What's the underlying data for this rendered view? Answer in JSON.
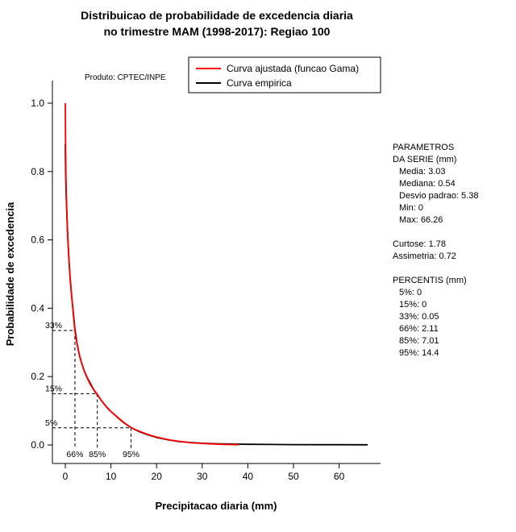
{
  "title": {
    "line1": "Distribuicao de probabilidade de excedencia diaria",
    "line2": "no trimestre MAM (1998-2017): Regiao 100"
  },
  "axes": {
    "x_label": "Precipitacao diaria (mm)",
    "y_label": "Probabilidade de excedencia"
  },
  "watermark": "Produto: CPTEC/INPE",
  "stats_panel": {
    "lines": [
      {
        "text": "PARAMETROS",
        "indent": 0
      },
      {
        "text": "DA SERIE (mm)",
        "indent": 0
      },
      {
        "text": "Media: 3.03",
        "indent": 1
      },
      {
        "text": "Mediana: 0.54",
        "indent": 1
      },
      {
        "text": "Desvio padrao: 5.38",
        "indent": 1
      },
      {
        "text": "Min: 0",
        "indent": 1
      },
      {
        "text": "Max: 66.26",
        "indent": 1
      },
      {
        "text": "",
        "indent": 0
      },
      {
        "text": "Curtose: 1.78",
        "indent": 0
      },
      {
        "text": "Assimetria: 0.72",
        "indent": 0
      },
      {
        "text": "",
        "indent": 0
      },
      {
        "text": "PERCENTIS (mm)",
        "indent": 0
      },
      {
        "text": "5%: 0",
        "indent": 1
      },
      {
        "text": "15%: 0",
        "indent": 1
      },
      {
        "text": "33%: 0.05",
        "indent": 1
      },
      {
        "text": "66%: 2.11",
        "indent": 1
      },
      {
        "text": "85%: 7.01",
        "indent": 1
      },
      {
        "text": "95%: 14.4",
        "indent": 1
      }
    ]
  },
  "chart_data": {
    "type": "line",
    "title": "Distribuicao de probabilidade de excedencia diaria no trimestre MAM (1998-2017): Regiao 100",
    "xlabel": "Precipitacao diaria (mm)",
    "ylabel": "Probabilidade de excedencia",
    "xlim": [
      0,
      66.26
    ],
    "ylim": [
      0,
      1.0
    ],
    "grid": false,
    "legend_position": "top-right",
    "x_ticks": [
      0,
      10,
      20,
      30,
      40,
      50,
      60
    ],
    "x_tick_labels": [
      "0",
      "10",
      "20",
      "30",
      "40",
      "50",
      "60"
    ],
    "y_ticks": [
      0,
      0.2,
      0.4,
      0.6,
      0.8,
      1.0
    ],
    "y_tick_labels": [
      "0.0",
      "0.2",
      "0.4",
      "0.6",
      "0.8",
      "1.0"
    ],
    "series": [
      {
        "name": "Curva ajustada (funcao Gama)",
        "color": "#FF0000",
        "points": [
          [
            0,
            1.0
          ],
          [
            0.03,
            0.92
          ],
          [
            0.08,
            0.85
          ],
          [
            0.15,
            0.78
          ],
          [
            0.25,
            0.72
          ],
          [
            0.4,
            0.655
          ],
          [
            0.6,
            0.59
          ],
          [
            0.8,
            0.54
          ],
          [
            1.0,
            0.5
          ],
          [
            1.3,
            0.45
          ],
          [
            1.6,
            0.405
          ],
          [
            1.85,
            0.368
          ],
          [
            2.11,
            0.335
          ],
          [
            2.5,
            0.3
          ],
          [
            3,
            0.268
          ],
          [
            3.5,
            0.243
          ],
          [
            4,
            0.222
          ],
          [
            4.5,
            0.205
          ],
          [
            5,
            0.19
          ],
          [
            5.5,
            0.177
          ],
          [
            6,
            0.166
          ],
          [
            6.5,
            0.157
          ],
          [
            7.01,
            0.148
          ],
          [
            7.5,
            0.138
          ],
          [
            8,
            0.128
          ],
          [
            9,
            0.112
          ],
          [
            10,
            0.098
          ],
          [
            11,
            0.086
          ],
          [
            12,
            0.075
          ],
          [
            13,
            0.064
          ],
          [
            14.4,
            0.051
          ],
          [
            15.5,
            0.044
          ],
          [
            17,
            0.036
          ],
          [
            18.5,
            0.029
          ],
          [
            20,
            0.023
          ],
          [
            22,
            0.017
          ],
          [
            24,
            0.012
          ],
          [
            26,
            0.009
          ],
          [
            28,
            0.006
          ],
          [
            30,
            0.0045
          ],
          [
            32,
            0.003
          ],
          [
            34,
            0.002
          ],
          [
            36,
            0.0012
          ],
          [
            38,
            0.0008
          ]
        ]
      },
      {
        "name": "Curva empirica",
        "color": "#000000",
        "points": [
          [
            0,
            0.88
          ],
          [
            0.05,
            0.82
          ],
          [
            0.12,
            0.77
          ],
          [
            0.2,
            0.73
          ],
          [
            0.35,
            0.67
          ],
          [
            0.5,
            0.62
          ],
          [
            0.7,
            0.565
          ],
          [
            0.9,
            0.52
          ],
          [
            1.1,
            0.48
          ],
          [
            1.4,
            0.435
          ],
          [
            1.7,
            0.395
          ],
          [
            2.11,
            0.34
          ],
          [
            2.6,
            0.295
          ],
          [
            3.1,
            0.262
          ],
          [
            3.6,
            0.238
          ],
          [
            4.2,
            0.215
          ],
          [
            4.8,
            0.197
          ],
          [
            5.5,
            0.18
          ],
          [
            6.2,
            0.162
          ],
          [
            7.01,
            0.147
          ],
          [
            7.8,
            0.132
          ],
          [
            8.6,
            0.118
          ],
          [
            9.5,
            0.104
          ],
          [
            10.5,
            0.092
          ],
          [
            11.5,
            0.08
          ],
          [
            12.8,
            0.065
          ],
          [
            14.4,
            0.051
          ],
          [
            16,
            0.04
          ],
          [
            18,
            0.03
          ],
          [
            20,
            0.022
          ],
          [
            22.5,
            0.015
          ],
          [
            25,
            0.01
          ],
          [
            27.5,
            0.007
          ],
          [
            30,
            0.005
          ],
          [
            33,
            0.0035
          ],
          [
            36,
            0.0025
          ],
          [
            40,
            0.002
          ],
          [
            45,
            0.0015
          ],
          [
            50,
            0.001
          ],
          [
            55,
            0.0008
          ],
          [
            60,
            0.0006
          ],
          [
            66.26,
            0.0005
          ]
        ]
      }
    ],
    "guides": [
      {
        "exceedance_label": "33%",
        "percentile_label": "66%",
        "y": 0.335,
        "x": 2.11
      },
      {
        "exceedance_label": "15%",
        "percentile_label": "85%",
        "y": 0.15,
        "x": 7.01
      },
      {
        "exceedance_label": "5%",
        "percentile_label": "95%",
        "y": 0.05,
        "x": 14.4
      }
    ]
  }
}
